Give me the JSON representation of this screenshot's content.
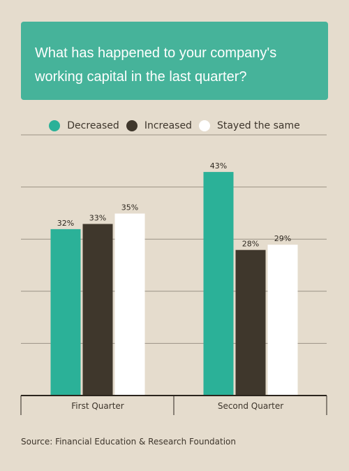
{
  "chart_data": {
    "type": "bar",
    "title": "What has happened to your company's working capital in the last quarter?",
    "categories": [
      "First Quarter",
      "Second Quarter"
    ],
    "series": [
      {
        "name": "Decreased",
        "values": [
          32,
          43
        ],
        "color": "#2bb198"
      },
      {
        "name": "Increased",
        "values": [
          33,
          28
        ],
        "color": "#3f372c"
      },
      {
        "name": "Stayed the same",
        "values": [
          35,
          29
        ],
        "color": "#ffffff"
      }
    ],
    "value_suffix": "%",
    "ylim": [
      0,
      50
    ],
    "grid": true,
    "legend_position": "top"
  },
  "source": "Source: Financial Education & Research Foundation"
}
